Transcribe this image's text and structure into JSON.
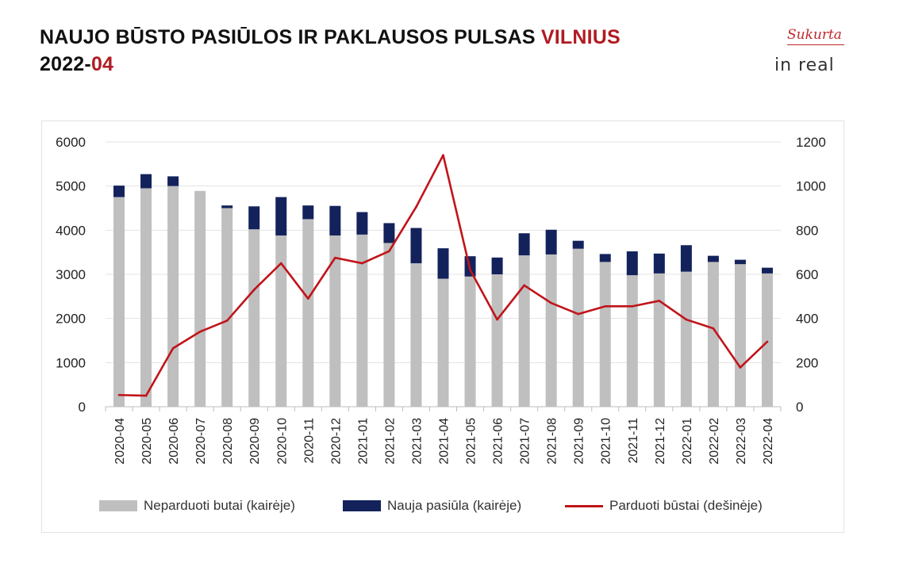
{
  "header": {
    "title_main": "NAUJO BŪSTO PASIŪLOS IR PAKLAUSOS PULSAS",
    "title_city": "VILNIUS",
    "period_year": "2022-",
    "period_month": "04"
  },
  "logo": {
    "script_text": "Sukurta",
    "word_text": "in real"
  },
  "colors": {
    "unsold": "#bfbfbf",
    "new_supply": "#14225c",
    "sold": "#c0141a",
    "accent": "#b01c22"
  },
  "chart_data": {
    "type": "bar",
    "stacked": true,
    "categories": [
      "2020-04",
      "2020-05",
      "2020-06",
      "2020-07",
      "2020-08",
      "2020-09",
      "2020-10",
      "2020-11",
      "2020-12",
      "2021-01",
      "2021-02",
      "2021-03",
      "2021-04",
      "2021-05",
      "2021-06",
      "2021-07",
      "2021-08",
      "2021-09",
      "2021-10",
      "2021-11",
      "2021-12",
      "2022-01",
      "2022-02",
      "2022-03",
      "2022-04"
    ],
    "series": [
      {
        "name": "Neparduoti butai (kairėje)",
        "type": "bar",
        "axis": "left",
        "color": "#bfbfbf",
        "values": [
          4750,
          4950,
          5000,
          4890,
          4500,
          4020,
          3880,
          4250,
          3880,
          3900,
          3710,
          3250,
          2900,
          2950,
          3000,
          3430,
          3450,
          3580,
          3280,
          2980,
          3020,
          3060,
          3280,
          3230,
          3020
        ]
      },
      {
        "name": "Nauja pasiūla (kairėje)",
        "type": "bar",
        "axis": "left",
        "color": "#14225c",
        "values": [
          260,
          320,
          220,
          0,
          60,
          520,
          870,
          310,
          670,
          510,
          450,
          800,
          690,
          460,
          380,
          500,
          560,
          180,
          180,
          540,
          450,
          600,
          140,
          100,
          130
        ]
      },
      {
        "name": "Parduoti būstai (dešinėje)",
        "type": "line",
        "axis": "right",
        "color": "#c0141a",
        "values": [
          53,
          50,
          265,
          340,
          390,
          530,
          650,
          490,
          675,
          650,
          705,
          905,
          1140,
          620,
          395,
          550,
          470,
          420,
          455,
          455,
          480,
          395,
          355,
          178,
          295
        ]
      }
    ],
    "y_left": {
      "min": 0,
      "max": 6000,
      "ticks": [
        0,
        1000,
        2000,
        3000,
        4000,
        5000,
        6000
      ]
    },
    "y_right": {
      "min": 0,
      "max": 1200,
      "ticks": [
        0,
        200,
        400,
        600,
        800,
        1000,
        1200
      ]
    },
    "grid": true,
    "legend_position": "bottom"
  }
}
